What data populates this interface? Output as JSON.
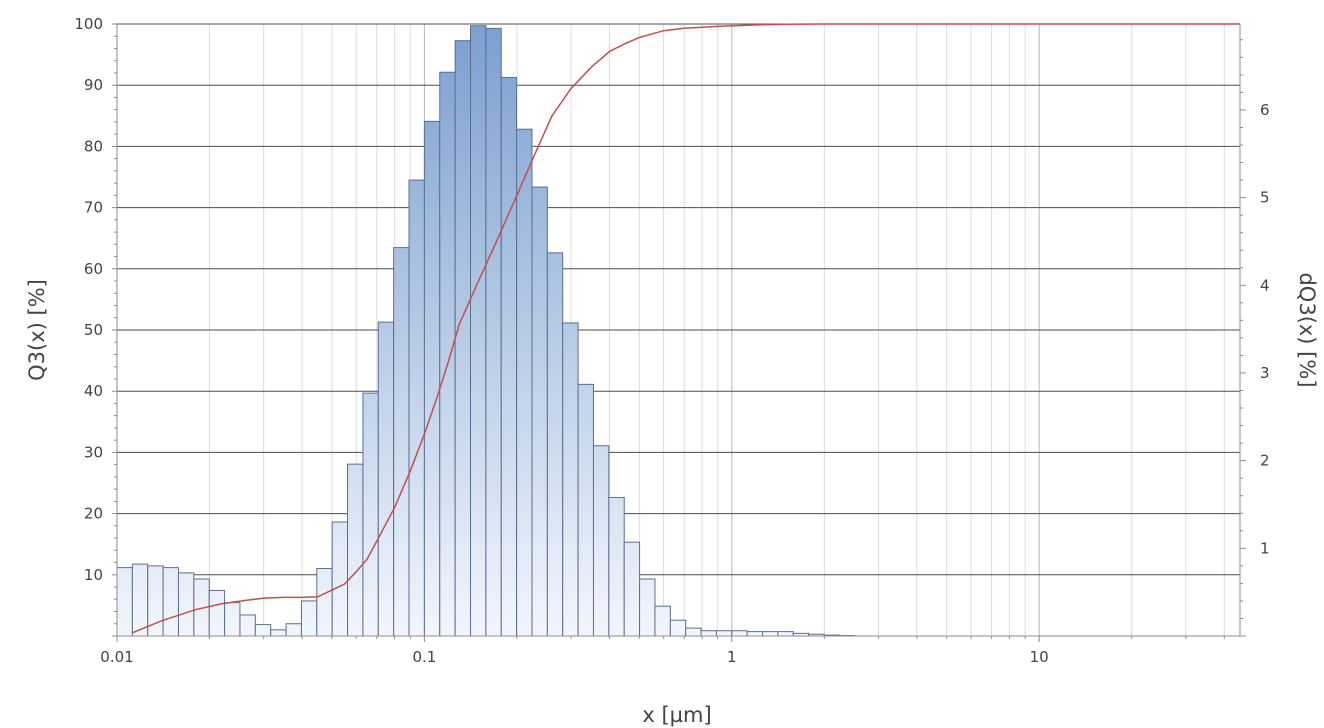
{
  "chart_data": {
    "type": "bar",
    "xlabel": "x [µm]",
    "ylabel": "Q3(x) [%]",
    "y2label": "dQ3(x) [%]",
    "x_scale": "log",
    "xlim": [
      0.01,
      45
    ],
    "ylim": [
      0,
      100
    ],
    "y2lim": [
      0,
      6.98
    ],
    "grid": true,
    "x_tick_labels": [
      "0.01",
      "0.1",
      "1",
      "10"
    ],
    "y_tick_labels": [
      "10",
      "20",
      "30",
      "40",
      "50",
      "60",
      "70",
      "80",
      "90",
      "100"
    ],
    "y2_tick_labels": [
      "1",
      "2",
      "3",
      "4",
      "5",
      "6"
    ],
    "series": [
      {
        "type": "bar",
        "axis": "right",
        "x_start": 0.01,
        "bins_per_decade": 20,
        "values": [
          0.78,
          0.82,
          0.8,
          0.78,
          0.72,
          0.65,
          0.52,
          0.38,
          0.24,
          0.13,
          0.07,
          0.14,
          0.4,
          0.77,
          1.3,
          1.96,
          2.77,
          3.58,
          4.43,
          5.2,
          5.87,
          6.43,
          6.79,
          6.96,
          6.93,
          6.37,
          5.78,
          5.12,
          4.37,
          3.57,
          2.87,
          2.17,
          1.58,
          1.07,
          0.65,
          0.34,
          0.18,
          0.09,
          0.06,
          0.06,
          0.06,
          0.05,
          0.05,
          0.05,
          0.03,
          0.02,
          0.01,
          0.005
        ]
      },
      {
        "type": "line",
        "axis": "left",
        "color": "#c0504d",
        "x": [
          0.0112,
          0.014,
          0.018,
          0.022,
          0.026,
          0.03,
          0.035,
          0.04,
          0.045,
          0.05,
          0.055,
          0.06,
          0.065,
          0.07,
          0.08,
          0.09,
          0.1,
          0.11,
          0.12,
          0.13,
          0.15,
          0.17,
          0.2,
          0.23,
          0.26,
          0.3,
          0.35,
          0.4,
          0.45,
          0.5,
          0.6,
          0.7,
          0.9,
          1.2,
          1.5,
          2,
          45
        ],
        "y": [
          0.5,
          2.5,
          4.3,
          5.3,
          5.8,
          6.2,
          6.3,
          6.3,
          6.4,
          7.5,
          8.5,
          10.5,
          12.5,
          15.5,
          21,
          27,
          33,
          39,
          45,
          51,
          58,
          64,
          72,
          79,
          85,
          89.5,
          93,
          95.5,
          96.8,
          97.8,
          98.9,
          99.3,
          99.6,
          99.85,
          99.95,
          100,
          100
        ]
      }
    ]
  }
}
